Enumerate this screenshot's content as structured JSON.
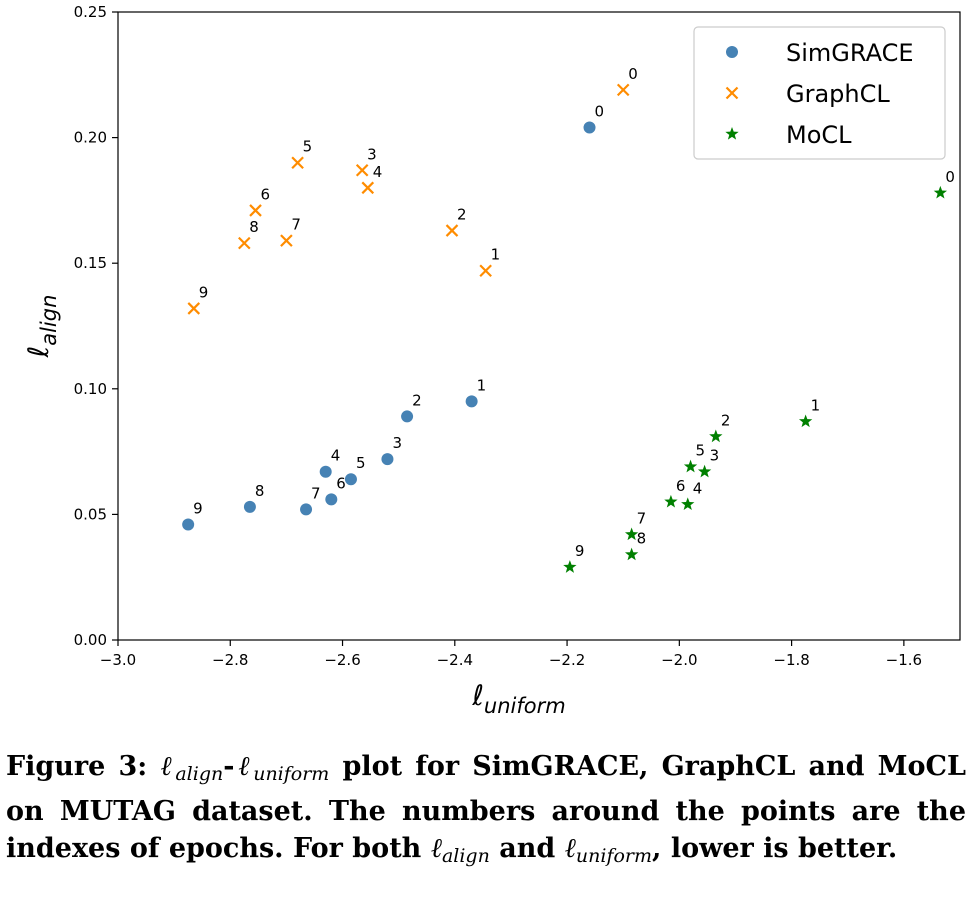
{
  "chart_data": {
    "type": "scatter",
    "title": "",
    "xlabel": {
      "base": "ℓ",
      "sub": "uniform"
    },
    "ylabel": {
      "base": "ℓ",
      "sub": "align"
    },
    "xlim": [
      -3.0,
      -1.5
    ],
    "ylim": [
      0.0,
      0.25
    ],
    "xticks": [
      -3.0,
      -2.8,
      -2.6,
      -2.4,
      -2.2,
      -2.0,
      -1.8,
      -1.6
    ],
    "xtick_labels": [
      "−3.0",
      "−2.8",
      "−2.6",
      "−2.4",
      "−2.2",
      "−2.0",
      "−1.8",
      "−1.6"
    ],
    "yticks": [
      0.0,
      0.05,
      0.1,
      0.15,
      0.2,
      0.25
    ],
    "ytick_labels": [
      "0.00",
      "0.05",
      "0.10",
      "0.15",
      "0.20",
      "0.25"
    ],
    "grid": false,
    "legend_position": "top-right",
    "series": [
      {
        "name": "SimGRACE",
        "marker": "circle",
        "color": "#4682b4",
        "points": [
          {
            "label": "0",
            "x": -2.16,
            "y": 0.204
          },
          {
            "label": "1",
            "x": -2.37,
            "y": 0.095
          },
          {
            "label": "2",
            "x": -2.485,
            "y": 0.089
          },
          {
            "label": "3",
            "x": -2.52,
            "y": 0.072
          },
          {
            "label": "4",
            "x": -2.63,
            "y": 0.067
          },
          {
            "label": "5",
            "x": -2.585,
            "y": 0.064
          },
          {
            "label": "6",
            "x": -2.62,
            "y": 0.056
          },
          {
            "label": "7",
            "x": -2.665,
            "y": 0.052
          },
          {
            "label": "8",
            "x": -2.765,
            "y": 0.053
          },
          {
            "label": "9",
            "x": -2.875,
            "y": 0.046
          }
        ]
      },
      {
        "name": "GraphCL",
        "marker": "x",
        "color": "#ff8c00",
        "points": [
          {
            "label": "0",
            "x": -2.1,
            "y": 0.219
          },
          {
            "label": "1",
            "x": -2.345,
            "y": 0.147
          },
          {
            "label": "2",
            "x": -2.405,
            "y": 0.163
          },
          {
            "label": "3",
            "x": -2.565,
            "y": 0.187
          },
          {
            "label": "4",
            "x": -2.555,
            "y": 0.18
          },
          {
            "label": "5",
            "x": -2.68,
            "y": 0.19
          },
          {
            "label": "6",
            "x": -2.755,
            "y": 0.171
          },
          {
            "label": "7",
            "x": -2.7,
            "y": 0.159
          },
          {
            "label": "8",
            "x": -2.775,
            "y": 0.158
          },
          {
            "label": "9",
            "x": -2.865,
            "y": 0.132
          }
        ]
      },
      {
        "name": "MoCL",
        "marker": "star",
        "color": "#008000",
        "points": [
          {
            "label": "0",
            "x": -1.535,
            "y": 0.178
          },
          {
            "label": "1",
            "x": -1.775,
            "y": 0.087
          },
          {
            "label": "2",
            "x": -1.935,
            "y": 0.081
          },
          {
            "label": "3",
            "x": -1.955,
            "y": 0.067
          },
          {
            "label": "4",
            "x": -1.985,
            "y": 0.054
          },
          {
            "label": "5",
            "x": -1.98,
            "y": 0.069
          },
          {
            "label": "6",
            "x": -2.015,
            "y": 0.055
          },
          {
            "label": "7",
            "x": -2.085,
            "y": 0.042
          },
          {
            "label": "8",
            "x": -2.085,
            "y": 0.034
          },
          {
            "label": "9",
            "x": -2.195,
            "y": 0.029
          }
        ]
      }
    ]
  },
  "caption": {
    "prefix": "Figure 3: ",
    "ell": "ℓ",
    "align": "align",
    "dash": "-",
    "uniform": "uniform",
    "middle": " plot for SimGRACE, GraphCL and MoCL on MUTAG dataset. The numbers around the points are the indexes of epochs. For both ",
    "and": " and ",
    "end": ", lower is better."
  }
}
